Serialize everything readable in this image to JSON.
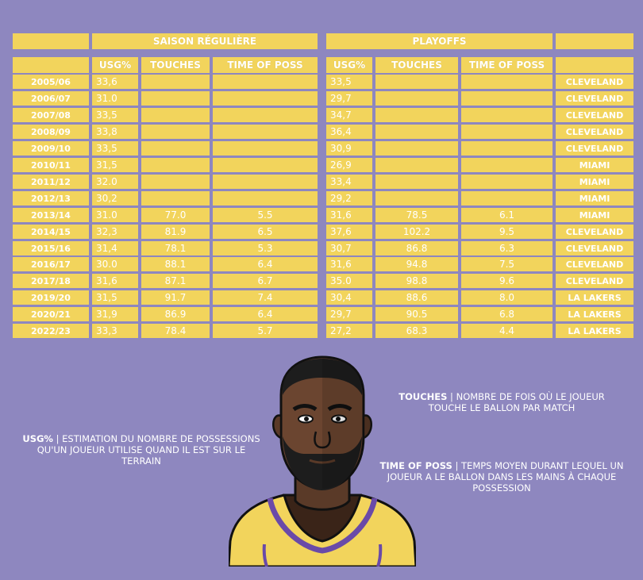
{
  "chart_data": {
    "type": "table",
    "groups": [
      {
        "label": "SAISON RÉGULIÈRE"
      },
      {
        "label": "PLAYOFFS"
      }
    ],
    "columns": {
      "regular": [
        "USG%",
        "TOUCHES",
        "TIME OF POSS"
      ],
      "playoffs": [
        "USG%",
        "TOUCHES",
        "TIME OF POSS"
      ]
    },
    "rows": [
      {
        "season": "2005/06",
        "r_usg": "33,6",
        "r_touches": "",
        "r_top": "",
        "p_usg": "33,5",
        "p_touches": "",
        "p_top": "",
        "team": "CLEVELAND"
      },
      {
        "season": "2006/07",
        "r_usg": "31.0",
        "r_touches": "",
        "r_top": "",
        "p_usg": "29,7",
        "p_touches": "",
        "p_top": "",
        "team": "CLEVELAND"
      },
      {
        "season": "2007/08",
        "r_usg": "33,5",
        "r_touches": "",
        "r_top": "",
        "p_usg": "34,7",
        "p_touches": "",
        "p_top": "",
        "team": "CLEVELAND"
      },
      {
        "season": "2008/09",
        "r_usg": "33,8",
        "r_touches": "",
        "r_top": "",
        "p_usg": "36,4",
        "p_touches": "",
        "p_top": "",
        "team": "CLEVELAND"
      },
      {
        "season": "2009/10",
        "r_usg": "33,5",
        "r_touches": "",
        "r_top": "",
        "p_usg": "30,9",
        "p_touches": "",
        "p_top": "",
        "team": "CLEVELAND"
      },
      {
        "season": "2010/11",
        "r_usg": "31,5",
        "r_touches": "",
        "r_top": "",
        "p_usg": "26,9",
        "p_touches": "",
        "p_top": "",
        "team": "MIAMI"
      },
      {
        "season": "2011/12",
        "r_usg": "32.0",
        "r_touches": "",
        "r_top": "",
        "p_usg": "33,4",
        "p_touches": "",
        "p_top": "",
        "team": "MIAMI"
      },
      {
        "season": "2012/13",
        "r_usg": "30,2",
        "r_touches": "",
        "r_top": "",
        "p_usg": "29,2",
        "p_touches": "",
        "p_top": "",
        "team": "MIAMI"
      },
      {
        "season": "2013/14",
        "r_usg": "31.0",
        "r_touches": "77.0",
        "r_top": "5.5",
        "p_usg": "31,6",
        "p_touches": "78.5",
        "p_top": "6.1",
        "team": "MIAMI"
      },
      {
        "season": "2014/15",
        "r_usg": "32,3",
        "r_touches": "81.9",
        "r_top": "6.5",
        "p_usg": "37,6",
        "p_touches": "102.2",
        "p_top": "9.5",
        "team": "CLEVELAND"
      },
      {
        "season": "2015/16",
        "r_usg": "31,4",
        "r_touches": "78.1",
        "r_top": "5.3",
        "p_usg": "30,7",
        "p_touches": "86.8",
        "p_top": "6.3",
        "team": "CLEVELAND"
      },
      {
        "season": "2016/17",
        "r_usg": "30.0",
        "r_touches": "88.1",
        "r_top": "6.4",
        "p_usg": "31,6",
        "p_touches": "94.8",
        "p_top": "7.5",
        "team": "CLEVELAND"
      },
      {
        "season": "2017/18",
        "r_usg": "31,6",
        "r_touches": "87.1",
        "r_top": "6.7",
        "p_usg": "35.0",
        "p_touches": "98.8",
        "p_top": "9.6",
        "team": "CLEVELAND"
      },
      {
        "season": "2019/20",
        "r_usg": "31,5",
        "r_touches": "91.7",
        "r_top": "7.4",
        "p_usg": "30,4",
        "p_touches": "88.6",
        "p_top": "8.0",
        "team": "LA LAKERS"
      },
      {
        "season": "2020/21",
        "r_usg": "31,9",
        "r_touches": "86.9",
        "r_top": "6.4",
        "p_usg": "29,7",
        "p_touches": "90.5",
        "p_top": "6.8",
        "team": "LA LAKERS"
      },
      {
        "season": "2022/23",
        "r_usg": "33,3",
        "r_touches": "78.4",
        "r_top": "5.7",
        "p_usg": "27,2",
        "p_touches": "68.3",
        "p_top": "4.4",
        "team": "LA LAKERS"
      }
    ]
  },
  "legend": {
    "usg_term": "USG%",
    "usg_text": " | ESTIMATION DU NOMBRE DE POSSESSIONS QU'UN JOUEUR UTILISE QUAND IL EST SUR LE TERRAIN",
    "touches_term": "TOUCHES",
    "touches_text": " | NOMBRE DE FOIS OÙ LE JOUEUR TOUCHE LE BALLON PAR MATCH",
    "top_term": "TIME OF POSS",
    "top_text": " | TEMPS MOYEN DURANT LEQUEL UN JOUEUR A LE BALLON DANS LES MAINS À CHAQUE POSSESSION"
  },
  "colors": {
    "background": "#8e87bf",
    "cell": "#f2d45c",
    "text": "#ffffff"
  },
  "illustration": {
    "icon": "basketball-player-portrait-icon"
  }
}
